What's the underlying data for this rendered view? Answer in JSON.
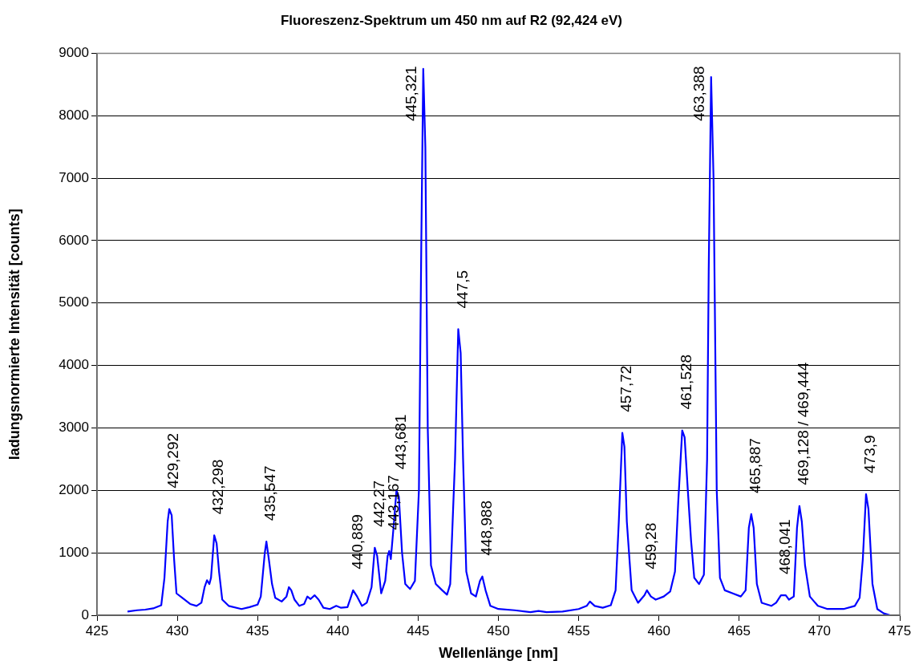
{
  "chart_data": {
    "type": "line",
    "title": "Fluoreszenz-Spektrum um 450 nm auf R2 (92,424 eV)",
    "xlabel": "Wellenlänge [nm]",
    "ylabel": "ladungsnormierte Intensität [counts]",
    "xlim": [
      425,
      475
    ],
    "xticks": [
      425,
      430,
      435,
      440,
      445,
      450,
      455,
      460,
      465,
      470,
      475
    ],
    "ylim": [
      0,
      9000
    ],
    "yticks": [
      0,
      1000,
      2000,
      3000,
      4000,
      5000,
      6000,
      7000,
      8000,
      9000
    ],
    "grid": "y",
    "legend": false,
    "marker": "none",
    "line_style": "solid",
    "series": [
      {
        "color": "#0000ff",
        "x": [
          426.9,
          427.5,
          428,
          428.5,
          429,
          429.2,
          429.4,
          429.5,
          429.65,
          429.8,
          429.95,
          430.3,
          430.8,
          431.2,
          431.5,
          431.7,
          431.85,
          432.0,
          432.1,
          432.3,
          432.45,
          432.6,
          432.8,
          433.2,
          434,
          434.5,
          435,
          435.2,
          435.45,
          435.55,
          435.7,
          435.9,
          436.1,
          436.5,
          436.8,
          436.95,
          437.1,
          437.3,
          437.6,
          437.9,
          438.1,
          438.3,
          438.55,
          438.8,
          439.1,
          439.5,
          439.9,
          440.2,
          440.6,
          440.8,
          440.95,
          441.2,
          441.5,
          441.8,
          442.1,
          442.3,
          442.45,
          442.7,
          442.95,
          443.1,
          443.2,
          443.3,
          443.5,
          443.65,
          443.8,
          444,
          444.2,
          444.5,
          444.8,
          445.05,
          445.2,
          445.32,
          445.45,
          445.6,
          445.8,
          446.1,
          446.5,
          446.8,
          447.0,
          447.3,
          447.5,
          447.65,
          447.8,
          448.0,
          448.3,
          448.6,
          448.85,
          449.0,
          449.2,
          449.5,
          450,
          451,
          452,
          452.5,
          453,
          454,
          455,
          455.5,
          455.7,
          456,
          456.5,
          457,
          457.3,
          457.5,
          457.72,
          457.85,
          458,
          458.3,
          458.7,
          459.1,
          459.25,
          459.5,
          459.8,
          460.3,
          460.7,
          461.0,
          461.2,
          461.45,
          461.6,
          461.8,
          462.0,
          462.2,
          462.5,
          462.8,
          463.0,
          463.1,
          463.25,
          463.4,
          463.6,
          463.8,
          464.1,
          464.6,
          465.1,
          465.4,
          465.6,
          465.75,
          465.9,
          466.1,
          466.4,
          467,
          467.3,
          467.6,
          467.9,
          468.1,
          468.4,
          468.6,
          468.75,
          468.9,
          469.1,
          469.4,
          469.9,
          470.5,
          471.5,
          472.2,
          472.5,
          472.7,
          472.9,
          473.05,
          473.3,
          473.6,
          474,
          474.4
        ],
        "values": [
          60,
          80,
          90,
          110,
          160,
          600,
          1500,
          1700,
          1600,
          900,
          350,
          280,
          180,
          150,
          200,
          450,
          560,
          500,
          600,
          1280,
          1150,
          700,
          250,
          150,
          100,
          130,
          170,
          300,
          1000,
          1180,
          900,
          500,
          280,
          220,
          300,
          450,
          400,
          250,
          150,
          180,
          300,
          260,
          320,
          250,
          120,
          100,
          150,
          120,
          130,
          280,
          400,
          300,
          150,
          200,
          450,
          1080,
          950,
          350,
          550,
          950,
          1030,
          900,
          1500,
          2000,
          1900,
          1000,
          500,
          420,
          550,
          2000,
          6000,
          8750,
          7500,
          3000,
          800,
          500,
          400,
          330,
          500,
          2500,
          4580,
          4200,
          2500,
          700,
          350,
          300,
          550,
          620,
          400,
          150,
          100,
          80,
          50,
          70,
          50,
          60,
          100,
          150,
          220,
          150,
          120,
          160,
          400,
          1500,
          2920,
          2700,
          1500,
          400,
          200,
          320,
          400,
          300,
          250,
          300,
          380,
          700,
          1800,
          2960,
          2850,
          2000,
          1200,
          600,
          500,
          650,
          2500,
          5500,
          8620,
          7000,
          2000,
          600,
          400,
          350,
          300,
          400,
          1400,
          1620,
          1400,
          500,
          200,
          150,
          200,
          320,
          320,
          250,
          300,
          1400,
          1750,
          1500,
          800,
          300,
          150,
          100,
          100,
          150,
          280,
          900,
          1940,
          1700,
          500,
          100,
          30,
          0
        ]
      }
    ],
    "annotations": [
      {
        "text": "429,292",
        "x": 429.5,
        "y": 1700
      },
      {
        "text": "432,298",
        "x": 432.3,
        "y": 1280
      },
      {
        "text": "435,547",
        "x": 435.55,
        "y": 1180
      },
      {
        "text": "440,889",
        "x": 440.95,
        "y": 400
      },
      {
        "text": "442,27",
        "x": 442.3,
        "y": 1080
      },
      {
        "text": "443,167",
        "x": 443.2,
        "y": 1030
      },
      {
        "text": "443,681",
        "x": 443.65,
        "y": 2000
      },
      {
        "text": "445,321",
        "x": 445.32,
        "y": 8750
      },
      {
        "text": "447,5",
        "x": 447.5,
        "y": 4580
      },
      {
        "text": "448,988",
        "x": 449.0,
        "y": 620
      },
      {
        "text": "457,72",
        "x": 457.72,
        "y": 2920
      },
      {
        "text": "459,28",
        "x": 459.25,
        "y": 400
      },
      {
        "text": "461,528",
        "x": 461.45,
        "y": 2960
      },
      {
        "text": "463,388",
        "x": 463.25,
        "y": 8620
      },
      {
        "text": "465,887",
        "x": 465.75,
        "y": 1620
      },
      {
        "text": "468,041",
        "x": 467.6,
        "y": 320
      },
      {
        "text": "469,128 / 469,444",
        "x": 468.75,
        "y": 1750
      },
      {
        "text": "473,9",
        "x": 472.9,
        "y": 1940
      }
    ]
  }
}
